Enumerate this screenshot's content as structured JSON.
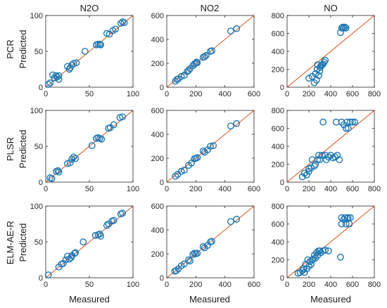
{
  "figure": {
    "columns": [
      "N2O",
      "NO2",
      "NO"
    ],
    "rows": [
      "PCR",
      "PLSR",
      "ELM-AE-R"
    ],
    "xlabel": "Measured",
    "ylabel": "Predicted",
    "colors": {
      "points": "#1f77b4",
      "line": "#d95319",
      "axes": "#262626"
    }
  },
  "chart_data": [
    {
      "type": "scatter",
      "model": "PCR",
      "gas": "N2O",
      "xlim": [
        0,
        100
      ],
      "ylim": [
        0,
        100
      ],
      "xticks": [
        "0",
        "50",
        "100"
      ],
      "yticks": [
        "0",
        "50",
        "100"
      ],
      "points": [
        [
          3,
          4
        ],
        [
          5,
          6
        ],
        [
          8,
          17
        ],
        [
          10,
          13
        ],
        [
          12,
          16
        ],
        [
          13,
          14
        ],
        [
          15,
          16
        ],
        [
          15,
          11
        ],
        [
          25,
          29
        ],
        [
          27,
          25
        ],
        [
          28,
          27
        ],
        [
          30,
          31
        ],
        [
          32,
          33
        ],
        [
          35,
          34
        ],
        [
          45,
          50
        ],
        [
          58,
          59
        ],
        [
          60,
          60
        ],
        [
          62,
          60
        ],
        [
          63,
          59
        ],
        [
          70,
          75
        ],
        [
          73,
          74
        ],
        [
          77,
          79
        ],
        [
          80,
          81
        ],
        [
          86,
          89
        ],
        [
          88,
          91
        ],
        [
          90,
          90
        ]
      ]
    },
    {
      "type": "scatter",
      "model": "PCR",
      "gas": "NO2",
      "xlim": [
        0,
        600
      ],
      "ylim": [
        0,
        600
      ],
      "xticks": [
        "0",
        "200",
        "400",
        "600"
      ],
      "yticks": [
        "0",
        "200",
        "400",
        "600"
      ],
      "points": [
        [
          60,
          50
        ],
        [
          70,
          65
        ],
        [
          80,
          70
        ],
        [
          100,
          90
        ],
        [
          120,
          100
        ],
        [
          140,
          130
        ],
        [
          150,
          140
        ],
        [
          160,
          155
        ],
        [
          180,
          180
        ],
        [
          190,
          195
        ],
        [
          200,
          200
        ],
        [
          205,
          210
        ],
        [
          210,
          205
        ],
        [
          250,
          250
        ],
        [
          260,
          255
        ],
        [
          270,
          265
        ],
        [
          300,
          300
        ],
        [
          310,
          305
        ],
        [
          440,
          470
        ],
        [
          480,
          490
        ]
      ]
    },
    {
      "type": "scatter",
      "model": "PCR",
      "gas": "NO",
      "xlim": [
        0,
        800
      ],
      "ylim": [
        0,
        800
      ],
      "xticks": [
        "0",
        "200",
        "400",
        "600",
        "800"
      ],
      "yticks": [
        "0",
        "200",
        "400",
        "600",
        "800"
      ],
      "points": [
        [
          200,
          100
        ],
        [
          230,
          120
        ],
        [
          250,
          50
        ],
        [
          260,
          150
        ],
        [
          270,
          80
        ],
        [
          275,
          200
        ],
        [
          280,
          250
        ],
        [
          290,
          130
        ],
        [
          300,
          180
        ],
        [
          305,
          220
        ],
        [
          310,
          240
        ],
        [
          320,
          250
        ],
        [
          330,
          260
        ],
        [
          340,
          280
        ],
        [
          350,
          300
        ],
        [
          490,
          610
        ],
        [
          500,
          660
        ],
        [
          510,
          670
        ],
        [
          520,
          660
        ],
        [
          530,
          670
        ],
        [
          540,
          660
        ]
      ]
    },
    {
      "type": "scatter",
      "model": "PLSR",
      "gas": "N2O",
      "xlim": [
        0,
        100
      ],
      "ylim": [
        0,
        100
      ],
      "xticks": [
        "0",
        "50",
        "100"
      ],
      "yticks": [
        "0",
        "50",
        "100"
      ],
      "points": [
        [
          5,
          6
        ],
        [
          7,
          5
        ],
        [
          12,
          15
        ],
        [
          14,
          16
        ],
        [
          15,
          14
        ],
        [
          25,
          26
        ],
        [
          28,
          27
        ],
        [
          30,
          32
        ],
        [
          32,
          35
        ],
        [
          34,
          33
        ],
        [
          53,
          51
        ],
        [
          58,
          61
        ],
        [
          60,
          62
        ],
        [
          62,
          61
        ],
        [
          64,
          60
        ],
        [
          72,
          75
        ],
        [
          74,
          76
        ],
        [
          78,
          80
        ],
        [
          85,
          90
        ],
        [
          88,
          91
        ]
      ]
    },
    {
      "type": "scatter",
      "model": "PLSR",
      "gas": "NO2",
      "xlim": [
        0,
        600
      ],
      "ylim": [
        0,
        600
      ],
      "xticks": [
        "0",
        "200",
        "400",
        "600"
      ],
      "yticks": [
        "0",
        "200",
        "400",
        "600"
      ],
      "points": [
        [
          60,
          50
        ],
        [
          75,
          65
        ],
        [
          100,
          90
        ],
        [
          120,
          100
        ],
        [
          150,
          140
        ],
        [
          170,
          160
        ],
        [
          190,
          195
        ],
        [
          200,
          200
        ],
        [
          210,
          205
        ],
        [
          250,
          260
        ],
        [
          260,
          250
        ],
        [
          280,
          270
        ],
        [
          300,
          300
        ],
        [
          320,
          305
        ],
        [
          440,
          470
        ],
        [
          480,
          490
        ]
      ]
    },
    {
      "type": "scatter",
      "model": "PLSR",
      "gas": "NO",
      "xlim": [
        0,
        800
      ],
      "ylim": [
        0,
        800
      ],
      "xticks": [
        "0",
        "200",
        "400",
        "600",
        "800"
      ],
      "yticks": [
        "0",
        "200",
        "400",
        "600",
        "800"
      ],
      "points": [
        [
          140,
          60
        ],
        [
          160,
          100
        ],
        [
          180,
          80
        ],
        [
          200,
          120
        ],
        [
          200,
          150
        ],
        [
          220,
          160
        ],
        [
          230,
          250
        ],
        [
          250,
          180
        ],
        [
          260,
          200
        ],
        [
          280,
          250
        ],
        [
          290,
          300
        ],
        [
          300,
          250
        ],
        [
          320,
          300
        ],
        [
          330,
          670
        ],
        [
          350,
          300
        ],
        [
          360,
          250
        ],
        [
          380,
          280
        ],
        [
          400,
          300
        ],
        [
          420,
          270
        ],
        [
          440,
          280
        ],
        [
          450,
          670
        ],
        [
          460,
          300
        ],
        [
          480,
          250
        ],
        [
          500,
          670
        ],
        [
          520,
          640
        ],
        [
          540,
          600
        ],
        [
          550,
          670
        ],
        [
          560,
          600
        ],
        [
          580,
          670
        ],
        [
          600,
          670
        ],
        [
          620,
          670
        ]
      ]
    },
    {
      "type": "scatter",
      "model": "ELM-AE-R",
      "gas": "N2O",
      "xlim": [
        0,
        100
      ],
      "ylim": [
        0,
        100
      ],
      "xticks": [
        "0",
        "50",
        "100"
      ],
      "yticks": [
        "0",
        "50",
        "100"
      ],
      "points": [
        [
          3,
          4
        ],
        [
          15,
          15
        ],
        [
          18,
          19
        ],
        [
          20,
          20
        ],
        [
          23,
          25
        ],
        [
          25,
          30
        ],
        [
          27,
          26
        ],
        [
          29,
          28
        ],
        [
          30,
          31
        ],
        [
          33,
          34
        ],
        [
          34,
          35
        ],
        [
          43,
          50
        ],
        [
          57,
          59
        ],
        [
          60,
          60
        ],
        [
          62,
          61
        ],
        [
          63,
          58
        ],
        [
          70,
          73
        ],
        [
          72,
          75
        ],
        [
          76,
          79
        ],
        [
          78,
          80
        ],
        [
          86,
          89
        ],
        [
          88,
          90
        ]
      ]
    },
    {
      "type": "scatter",
      "model": "ELM-AE-R",
      "gas": "NO2",
      "xlim": [
        0,
        600
      ],
      "ylim": [
        0,
        600
      ],
      "xticks": [
        "0",
        "200",
        "400",
        "600"
      ],
      "yticks": [
        "0",
        "200",
        "400",
        "600"
      ],
      "points": [
        [
          55,
          55
        ],
        [
          65,
          60
        ],
        [
          80,
          75
        ],
        [
          100,
          100
        ],
        [
          120,
          115
        ],
        [
          150,
          150
        ],
        [
          160,
          140
        ],
        [
          180,
          195
        ],
        [
          190,
          205
        ],
        [
          200,
          200
        ],
        [
          210,
          205
        ],
        [
          250,
          260
        ],
        [
          260,
          250
        ],
        [
          280,
          270
        ],
        [
          300,
          300
        ],
        [
          310,
          305
        ],
        [
          440,
          470
        ],
        [
          480,
          490
        ]
      ]
    },
    {
      "type": "scatter",
      "model": "ELM-AE-R",
      "gas": "NO",
      "xlim": [
        0,
        800
      ],
      "ylim": [
        0,
        800
      ],
      "xticks": [
        "0",
        "200",
        "400",
        "600",
        "800"
      ],
      "yticks": [
        "0",
        "200",
        "400",
        "600",
        "800"
      ],
      "points": [
        [
          100,
          50
        ],
        [
          120,
          60
        ],
        [
          140,
          80
        ],
        [
          150,
          100
        ],
        [
          160,
          60
        ],
        [
          170,
          150
        ],
        [
          180,
          100
        ],
        [
          190,
          200
        ],
        [
          200,
          130
        ],
        [
          210,
          180
        ],
        [
          220,
          150
        ],
        [
          230,
          200
        ],
        [
          240,
          210
        ],
        [
          250,
          250
        ],
        [
          260,
          220
        ],
        [
          270,
          280
        ],
        [
          280,
          250
        ],
        [
          290,
          300
        ],
        [
          300,
          300
        ],
        [
          310,
          280
        ],
        [
          330,
          300
        ],
        [
          350,
          310
        ],
        [
          380,
          300
        ],
        [
          490,
          230
        ],
        [
          500,
          600
        ],
        [
          500,
          670
        ],
        [
          520,
          650
        ],
        [
          530,
          670
        ],
        [
          540,
          600
        ],
        [
          550,
          660
        ],
        [
          560,
          670
        ],
        [
          570,
          600
        ],
        [
          580,
          670
        ]
      ]
    }
  ]
}
